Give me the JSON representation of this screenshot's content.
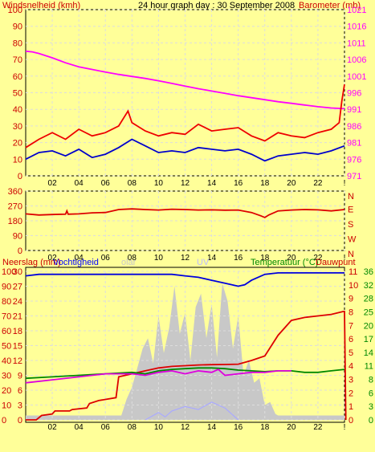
{
  "chart_data": [
    {
      "type": "line",
      "title": "24 hour graph day : 30 September 2008",
      "left_label": "Windsnelheid (kmh)",
      "right_label": "Barometer (mb)",
      "x_ticks": [
        "02",
        "04",
        "06",
        "08",
        "10",
        "12",
        "14",
        "16",
        "18",
        "20",
        "22",
        "!"
      ],
      "y_left_ticks": [
        0,
        10,
        20,
        30,
        40,
        50,
        60,
        70,
        80,
        90,
        100
      ],
      "y_right_ticks": [
        971,
        976,
        981,
        986,
        991,
        996,
        1001,
        1006,
        1011,
        1016,
        1021
      ],
      "xlim": [
        0,
        24
      ],
      "ylim_left": [
        0,
        100
      ],
      "ylim_right": [
        971,
        1021
      ],
      "grid": true,
      "colors": {
        "left_label": "#cc0000",
        "right_label": "#ff00ff",
        "title": "#000000"
      },
      "series": [
        {
          "name": "Barometer (mb)",
          "axis": "right",
          "color": "#ff00ff",
          "x": [
            0,
            0.5,
            1,
            2,
            3,
            4,
            5,
            6,
            7,
            8,
            9,
            10,
            11,
            12,
            13,
            14,
            15,
            16,
            17,
            18,
            19,
            20,
            21,
            22,
            23,
            24
          ],
          "values": [
            1008.5,
            1008.3,
            1007.8,
            1006.5,
            1005.0,
            1003.8,
            1003.0,
            1002.2,
            1001.5,
            1000.9,
            1000.3,
            999.6,
            998.8,
            998.0,
            997.2,
            996.5,
            995.8,
            995.1,
            994.5,
            993.9,
            993.3,
            992.8,
            992.3,
            991.8,
            991.4,
            991.2
          ]
        },
        {
          "name": "gust",
          "axis": "left",
          "color": "#ee0000",
          "x": [
            0,
            1,
            2,
            3,
            4,
            5,
            6,
            7,
            7.7,
            8,
            9,
            10,
            11,
            12,
            13,
            14,
            15,
            16,
            17,
            18,
            19,
            20,
            21,
            22,
            23,
            23.6,
            23.8,
            24
          ],
          "values": [
            17,
            22,
            26,
            22,
            28,
            24,
            26,
            30,
            39,
            32,
            27,
            24,
            26,
            25,
            31,
            27,
            28,
            29,
            24,
            21,
            26,
            24,
            23,
            26,
            28,
            32,
            45,
            55
          ]
        },
        {
          "name": "average",
          "axis": "left",
          "color": "#0000cc",
          "x": [
            0,
            1,
            2,
            3,
            4,
            5,
            6,
            7,
            8,
            9,
            10,
            11,
            12,
            13,
            14,
            15,
            16,
            17,
            18,
            19,
            20,
            21,
            22,
            23,
            24
          ],
          "values": [
            10,
            14,
            15,
            12,
            16,
            11,
            13,
            17,
            22,
            18,
            14,
            15,
            14,
            17,
            16,
            15,
            16,
            13,
            9,
            12,
            13,
            14,
            13,
            15,
            18
          ]
        }
      ]
    },
    {
      "type": "line",
      "x_ticks": [
        "02",
        "04",
        "06",
        "08",
        "10",
        "12",
        "14",
        "16",
        "18",
        "20",
        "22",
        "!"
      ],
      "y_left_ticks": [
        0,
        90,
        180,
        270,
        360
      ],
      "y_right_ticks": [
        "N",
        "W",
        "S",
        "E",
        "N"
      ],
      "xlim": [
        0,
        24
      ],
      "ylim": [
        0,
        360
      ],
      "grid": true,
      "series": [
        {
          "axis": "left",
          "color": "#dd0000",
          "x": [
            0,
            1,
            2,
            3,
            3.1,
            3.2,
            4,
            5,
            6,
            7,
            8,
            9,
            10,
            11,
            12,
            13,
            14,
            15,
            16,
            17,
            17.7,
            18,
            18.3,
            19,
            20,
            21,
            22,
            23,
            24
          ],
          "values": [
            222,
            215,
            218,
            220,
            240,
            220,
            222,
            228,
            230,
            248,
            252,
            248,
            245,
            250,
            248,
            245,
            246,
            244,
            245,
            230,
            210,
            200,
            215,
            240,
            245,
            248,
            246,
            240,
            248
          ]
        }
      ]
    },
    {
      "type": "line",
      "labels": [
        "Neerslag (mm)",
        "Vochtigheid",
        "olar",
        "UV",
        "Temperatuur (°C)",
        "Dauwpunt"
      ],
      "x_ticks": [
        "02",
        "04",
        "06",
        "08",
        "10",
        "12",
        "14",
        "16",
        "18",
        "20",
        "22",
        "!"
      ],
      "y_left_outer_ticks": [
        0,
        10,
        20,
        30,
        40,
        50,
        60,
        70,
        80,
        90,
        100
      ],
      "y_left_inner_ticks": [
        0,
        3,
        6,
        9,
        12,
        15,
        18,
        21,
        24,
        27,
        30
      ],
      "y_right_outer_ticks": [
        0,
        3,
        6,
        8,
        11,
        14,
        17,
        20,
        25,
        28,
        32,
        36
      ],
      "y_right_inner_ticks": [
        0,
        1,
        2,
        3,
        4,
        5,
        6,
        7,
        8,
        9,
        10,
        11
      ],
      "xlim": [
        0,
        24
      ],
      "ylim": [
        0,
        100
      ],
      "grid": true,
      "colors": {
        "rain": "#cc0000",
        "humidity": "#0000ff",
        "solar": "#cccccc",
        "uv": "#bbbbff",
        "temperature": "#cc0000",
        "dewpoint": "#ff0000"
      },
      "series": [
        {
          "name": "Vochtigheid",
          "color": "#0000dd",
          "x": [
            0,
            1,
            2,
            3,
            4,
            5,
            6,
            7,
            8,
            9,
            10,
            11,
            12,
            13,
            14,
            15,
            16,
            16.5,
            17,
            18,
            19,
            20,
            21,
            22,
            23,
            24
          ],
          "values": [
            97,
            98,
            98,
            98,
            98,
            98,
            98,
            98,
            98,
            98,
            98,
            98,
            97,
            96,
            94,
            92,
            90,
            91,
            94,
            98,
            99,
            99,
            99,
            99,
            99,
            99
          ]
        },
        {
          "name": "Neerslag (mm)",
          "color": "#dd0000",
          "x": [
            0,
            0.8,
            1.2,
            2.0,
            2.2,
            3.3,
            3.5,
            4.6,
            4.8,
            5.5,
            6.8,
            7.0,
            7.5,
            8,
            9,
            10,
            11,
            12,
            13,
            14,
            15,
            16,
            17,
            18,
            19,
            20,
            21,
            22,
            23,
            23.9,
            24,
            24.1
          ],
          "values": [
            0,
            0,
            3,
            4,
            6,
            6,
            7,
            8,
            11,
            13,
            15,
            29,
            30,
            31,
            33,
            35,
            36,
            36.5,
            37,
            37.2,
            37.3,
            37.5,
            40,
            43,
            57,
            67,
            69,
            70,
            71,
            73,
            73,
            0
          ]
        },
        {
          "name": "Temperatuur (°C)",
          "color": "#008800",
          "x": [
            0,
            2,
            4,
            6,
            8,
            9,
            10,
            11,
            12,
            13,
            14,
            15,
            16,
            17,
            18,
            19,
            20,
            21,
            22,
            23,
            24
          ],
          "values": [
            28,
            29,
            30,
            31,
            32,
            31,
            33,
            34,
            34.5,
            35,
            35,
            34.5,
            33.5,
            33,
            32.5,
            33,
            33,
            32,
            32,
            33,
            34
          ]
        },
        {
          "name": "Dauwpunt",
          "color": "#dd00dd",
          "x": [
            0,
            2,
            4,
            6,
            8,
            9,
            10,
            11,
            12,
            13,
            14,
            14.5,
            15,
            16,
            17,
            18,
            19,
            20
          ],
          "values": [
            25,
            27,
            29,
            31,
            31,
            30,
            32,
            33,
            31,
            33,
            32,
            34,
            30,
            31,
            32,
            32,
            33,
            33
          ]
        },
        {
          "name": "UV",
          "color": "#aaaaff",
          "x": [
            9,
            10,
            10.5,
            11,
            12,
            13,
            14,
            15,
            15.5,
            16
          ],
          "values": [
            0,
            5,
            2,
            6,
            9,
            7,
            12,
            8,
            4,
            0
          ]
        },
        {
          "name": "olar",
          "color": "#cccccc",
          "x": [
            0,
            7.2,
            7.6,
            8.0,
            8.4,
            8.8,
            9.2,
            9.6,
            10.0,
            10.4,
            10.8,
            11.2,
            11.6,
            12.0,
            12.4,
            12.8,
            13.2,
            13.6,
            14.0,
            14.4,
            14.8,
            15.2,
            15.6,
            16.0,
            16.4,
            16.8,
            17.2,
            17.6,
            18.0,
            18.4,
            18.8,
            19.0,
            24
          ],
          "values": [
            3,
            3,
            14,
            22,
            35,
            48,
            55,
            38,
            70,
            45,
            62,
            90,
            58,
            72,
            40,
            76,
            85,
            55,
            78,
            42,
            92,
            80,
            48,
            70,
            30,
            40,
            25,
            28,
            10,
            12,
            4,
            3,
            3
          ]
        }
      ]
    }
  ]
}
